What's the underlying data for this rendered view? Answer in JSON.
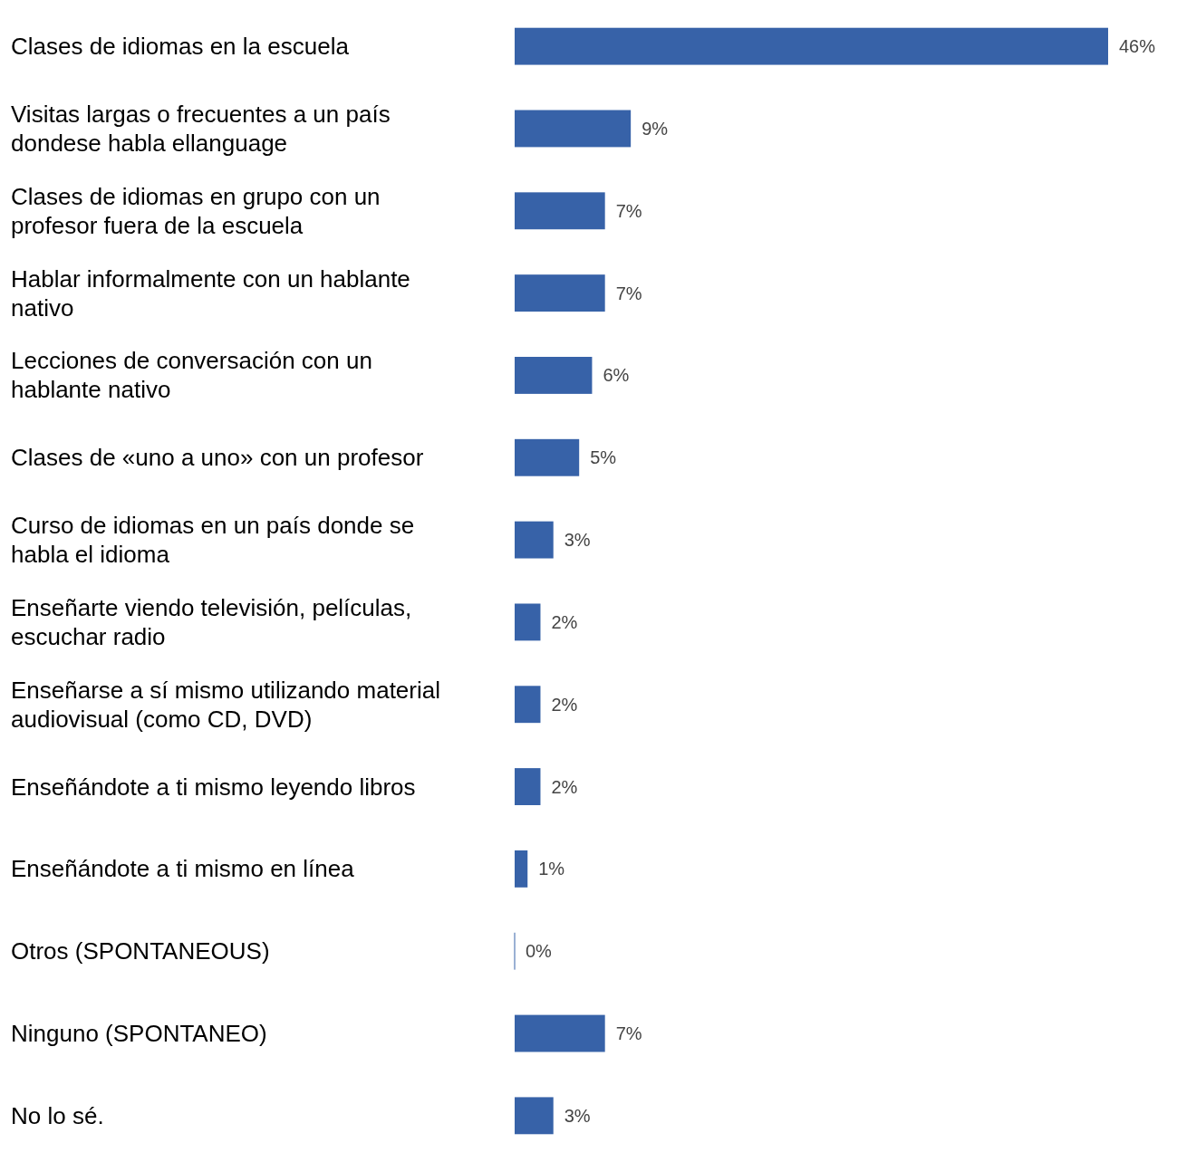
{
  "chart_data": {
    "type": "bar",
    "orientation": "horizontal",
    "categories": [
      "Clases de idiomas en la escuela",
      "Visitas largas o frecuentes a un país dondese habla ellanguage",
      "Clases de idiomas en grupo con un profesor fuera de la escuela",
      "Hablar informalmente con un hablante nativo",
      "Lecciones de conversación con un hablante nativo",
      "Clases de «uno a uno» con un profesor",
      "Curso de idiomas en un país donde se habla el idioma",
      "Enseñarte viendo televisión, películas, escuchar radio",
      "Enseñarse a sí mismo utilizando material audiovisual (como CD, DVD)",
      "Enseñándote a ti mismo leyendo libros",
      "Enseñándote a ti mismo en línea",
      "Otros (SPONTANEOUS)",
      "Ninguno (SPONTANEO)",
      "No lo sé."
    ],
    "values": [
      46,
      9,
      7,
      7,
      6,
      5,
      3,
      2,
      2,
      2,
      1,
      0,
      7,
      3
    ],
    "value_labels": [
      "46%",
      "9%",
      "7%",
      "7%",
      "6%",
      "5%",
      "3%",
      "2%",
      "2%",
      "2%",
      "1%",
      "0%",
      "7%",
      "3%"
    ],
    "color": "#3762a8"
  }
}
